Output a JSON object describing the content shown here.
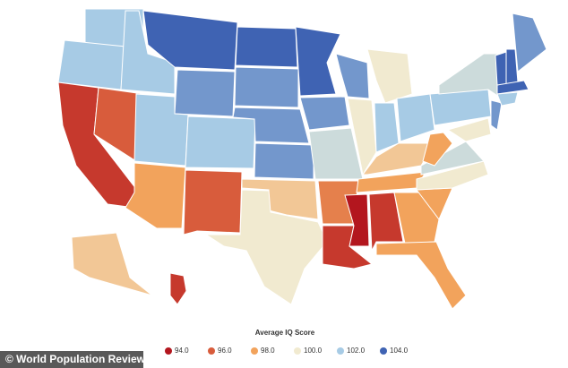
{
  "map": {
    "states": [
      {
        "value": 102
      },
      {
        "value": 102
      },
      {
        "value": 95
      },
      {
        "value": 96
      },
      {
        "value": 102
      },
      {
        "value": 104
      },
      {
        "value": 103
      },
      {
        "value": 102
      },
      {
        "value": 98
      },
      {
        "value": 102
      },
      {
        "value": 96
      },
      {
        "value": 104
      },
      {
        "value": 103
      },
      {
        "value": 103
      },
      {
        "value": 103
      },
      {
        "value": 99
      },
      {
        "value": 100
      },
      {
        "value": 104
      },
      {
        "value": 103
      },
      {
        "value": 101
      },
      {
        "value": 97
      },
      {
        "value": 95
      },
      {
        "value": 103
      },
      {
        "value": 100
      },
      {
        "value": 100
      },
      {
        "value": 102
      },
      {
        "value": 102
      },
      {
        "value": 99
      },
      {
        "value": 98
      },
      {
        "value": 94
      },
      {
        "value": 95
      },
      {
        "value": 98
      },
      {
        "value": 98
      },
      {
        "value": 98
      },
      {
        "value": 100
      },
      {
        "value": 101
      },
      {
        "value": 98
      },
      {
        "value": 102
      },
      {
        "value": 101
      },
      {
        "value": 100
      },
      {
        "value": 103
      },
      {
        "value": 104
      },
      {
        "value": 104
      },
      {
        "value": 103
      },
      {
        "value": 104
      },
      {
        "value": 102
      },
      {
        "value": 99
      },
      {
        "value": 95
      }
    ],
    "legend": {
      "title": "Average IQ Score",
      "items": [
        {
          "value": 94,
          "label": "94.0",
          "color": "#b3161e"
        },
        {
          "value": 96,
          "label": "96.0",
          "color": "#d85c3c"
        },
        {
          "value": 98,
          "label": "98.0",
          "color": "#f2a35c"
        },
        {
          "value": 100,
          "label": "100.0",
          "color": "#f1ead0"
        },
        {
          "value": 102,
          "label": "102.0",
          "color": "#a7cbe5"
        },
        {
          "value": 104,
          "label": "104.0",
          "color": "#3f63b3"
        }
      ]
    },
    "source": "© World Population Review"
  }
}
